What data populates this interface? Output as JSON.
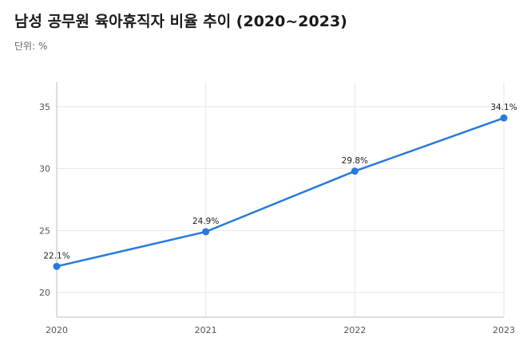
{
  "header": {
    "title": "남성 공무원 육아휴직자 비율 추이 (2020~2023)",
    "unit_label": "단위: %"
  },
  "colors": {
    "series": "#2979e0",
    "grid": "#e6e6e6",
    "axis": "#bdbdbd"
  },
  "chart_data": {
    "type": "line",
    "title": "남성 공무원 육아휴직자 비율 추이 (2020~2023)",
    "subtitle": "단위: %",
    "x": [
      "2020",
      "2021",
      "2022",
      "2023"
    ],
    "series": [
      {
        "values": [
          22.1,
          24.9,
          29.8,
          34.1
        ],
        "labels": [
          "22.1%",
          "24.9%",
          "29.8%",
          "34.1%"
        ]
      }
    ],
    "yticks": [
      20,
      25,
      30,
      35
    ],
    "ylim": [
      18,
      37
    ],
    "xlabel": "",
    "ylabel": "",
    "grid": true,
    "legend": "none"
  }
}
